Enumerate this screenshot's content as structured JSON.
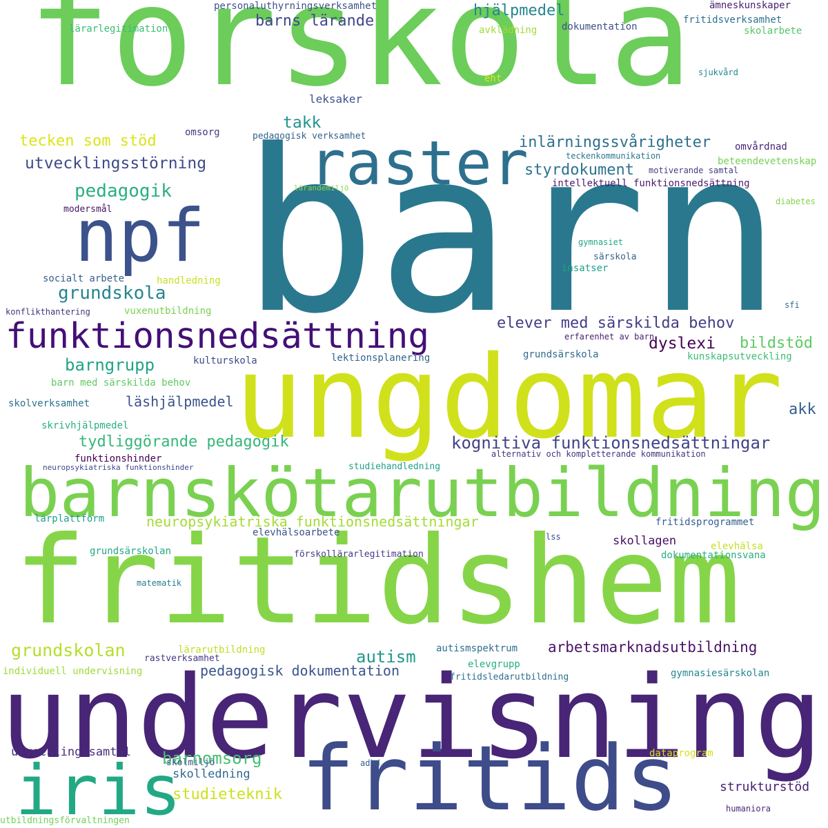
{
  "words": [
    {
      "text": "förskola",
      "color": "#6ccd5a"
    },
    {
      "text": "barn",
      "color": "#2a788e"
    },
    {
      "text": "ungdomar",
      "color": "#d0e11c"
    },
    {
      "text": "fritidshem",
      "color": "#86d549"
    },
    {
      "text": "undervisning",
      "color": "#482576"
    },
    {
      "text": "barnskötarutbildning",
      "color": "#7ad151"
    },
    {
      "text": "fritids",
      "color": "#3e4c8a"
    },
    {
      "text": "raster",
      "color": "#2d708e"
    },
    {
      "text": "npf",
      "color": "#3b528b"
    },
    {
      "text": "funktionsnedsättning",
      "color": "#440f76"
    },
    {
      "text": "iris",
      "color": "#22a884"
    },
    {
      "text": "elever med särskilda behov",
      "color": "#433e85"
    },
    {
      "text": "kognitiva funktionsnedsättningar",
      "color": "#414487"
    },
    {
      "text": "neuropsykiatriska funktionsnedsättningar",
      "color": "#a5db36"
    },
    {
      "text": "grundskola",
      "color": "#25858e"
    },
    {
      "text": "pedagogik",
      "color": "#29af7f"
    },
    {
      "text": "utvecklingsstörning",
      "color": "#3e4a89"
    },
    {
      "text": "tecken som stöd",
      "color": "#dde318"
    },
    {
      "text": "takk",
      "color": "#21918c"
    },
    {
      "text": "inlärningssvårigheter",
      "color": "#2d708e"
    },
    {
      "text": "styrdokument",
      "color": "#2c728e"
    },
    {
      "text": "hjälpmedel",
      "color": "#24878e"
    },
    {
      "text": "barns lärande",
      "color": "#3f4889"
    },
    {
      "text": "leksaker",
      "color": "#3b528b"
    },
    {
      "text": "barngrupp",
      "color": "#20a486"
    },
    {
      "text": "läshjälpmedel",
      "color": "#3b528b"
    },
    {
      "text": "tydliggörande pedagogik",
      "color": "#35b779"
    },
    {
      "text": "dyslexi",
      "color": "#440154"
    },
    {
      "text": "bildstöd",
      "color": "#5ec962"
    },
    {
      "text": "akk",
      "color": "#355f8d"
    },
    {
      "text": "grundskolan",
      "color": "#b5de2b"
    },
    {
      "text": "autism",
      "color": "#1f988b"
    },
    {
      "text": "arbetsmarknadsutbildning",
      "color": "#471365"
    },
    {
      "text": "pedagogisk dokumentation",
      "color": "#3a548c"
    },
    {
      "text": "barnomsorg",
      "color": "#44bf70"
    },
    {
      "text": "studieteknik",
      "color": "#cde11d"
    },
    {
      "text": "skolledning",
      "color": "#31688e"
    },
    {
      "text": "strukturstöd",
      "color": "#482173"
    },
    {
      "text": "utvecklingssamtal",
      "color": "#472d7b"
    },
    {
      "text": "skollagen",
      "color": "#471063"
    },
    {
      "text": "personaluthyrningsverksamhet",
      "color": "#3b528b"
    },
    {
      "text": "lärarlegitimation",
      "color": "#3dbc74"
    },
    {
      "text": "avklädning",
      "color": "#a2da37"
    },
    {
      "text": "dokumentation",
      "color": "#3d4e8a"
    },
    {
      "text": "ämneskunskaper",
      "color": "#481f70"
    },
    {
      "text": "fritidsverksamhet",
      "color": "#2c718e"
    },
    {
      "text": "skolarbete",
      "color": "#54c568"
    },
    {
      "text": "sjukvård",
      "color": "#23888e"
    },
    {
      "text": "eht",
      "color": "#e5e419"
    },
    {
      "text": "omsorg",
      "color": "#443983"
    },
    {
      "text": "pedagogisk verksamhet",
      "color": "#33638d"
    },
    {
      "text": "omvårdnad",
      "color": "#482677"
    },
    {
      "text": "teckenkommunikation",
      "color": "#2a788e"
    },
    {
      "text": "beteendevetenskap",
      "color": "#75d054"
    },
    {
      "text": "motiverande samtal",
      "color": "#433e85"
    },
    {
      "text": "intellektuell funktionsnedsättning",
      "color": "#481a6c"
    },
    {
      "text": "lärandemiljö",
      "color": "#8bd646"
    },
    {
      "text": "modersmål",
      "color": "#481467"
    },
    {
      "text": "diabetes",
      "color": "#84d44b"
    },
    {
      "text": "gymnasiet",
      "color": "#22a785"
    },
    {
      "text": "särskola",
      "color": "#32658e"
    },
    {
      "text": "insatser",
      "color": "#1fa088"
    },
    {
      "text": "socialt arbete",
      "color": "#365d8d"
    },
    {
      "text": "handledning",
      "color": "#c8e020"
    },
    {
      "text": "sfi",
      "color": "#2e6f8e"
    },
    {
      "text": "konflikthantering",
      "color": "#46327e"
    },
    {
      "text": "vuxenutbildning",
      "color": "#7ad151"
    },
    {
      "text": "erfarenhet av barn",
      "color": "#481c6e"
    },
    {
      "text": "kulturskola",
      "color": "#3e4a89"
    },
    {
      "text": "lektionsplanering",
      "color": "#33638d"
    },
    {
      "text": "grundsärskola",
      "color": "#306a8e"
    },
    {
      "text": "kunskapsutveckling",
      "color": "#3dbc74"
    },
    {
      "text": "barn med särskilda behov",
      "color": "#5ec962"
    },
    {
      "text": "skolverksamhet",
      "color": "#2c728e"
    },
    {
      "text": "skrivhjälpmedel",
      "color": "#29af7f"
    },
    {
      "text": "funktionshinder",
      "color": "#440154"
    },
    {
      "text": "neuropsykiatriska funktionshinder",
      "color": "#3f4889"
    },
    {
      "text": "studiehandledning",
      "color": "#1fa088"
    },
    {
      "text": "alternativ och kompletterande kommunikation",
      "color": "#46337f"
    },
    {
      "text": "lärplattform",
      "color": "#1f9e89"
    },
    {
      "text": "elevhälsoarbete",
      "color": "#3b528b"
    },
    {
      "text": "fritidsprogrammet",
      "color": "#34608d"
    },
    {
      "text": "lss",
      "color": "#3e4a89"
    },
    {
      "text": "elevhälsa",
      "color": "#c2df23"
    },
    {
      "text": "grundsärskolan",
      "color": "#22a884"
    },
    {
      "text": "förskollärarlegitimation",
      "color": "#433e85"
    },
    {
      "text": "dokumentationsvana",
      "color": "#29af7f"
    },
    {
      "text": "matematik",
      "color": "#287d8e"
    },
    {
      "text": "lärarutbildning",
      "color": "#bddf26"
    },
    {
      "text": "autismspektrum",
      "color": "#2e6e8e"
    },
    {
      "text": "rastverksamhet",
      "color": "#453781"
    },
    {
      "text": "elevgrupp",
      "color": "#27ad81"
    },
    {
      "text": "individuell undervisning",
      "color": "#a0da39"
    },
    {
      "text": "fritidsledarutbildning",
      "color": "#2e6f8e"
    },
    {
      "text": "gymnasiesärskolan",
      "color": "#24868e"
    },
    {
      "text": "dataprogram",
      "color": "#d8e219"
    },
    {
      "text": "adhd",
      "color": "#355f8d"
    },
    {
      "text": "skolmiljö",
      "color": "#3a548c"
    },
    {
      "text": "humaniora",
      "color": "#482677"
    },
    {
      "text": "utbildningsförvaltningen",
      "color": "#73d056"
    }
  ]
}
